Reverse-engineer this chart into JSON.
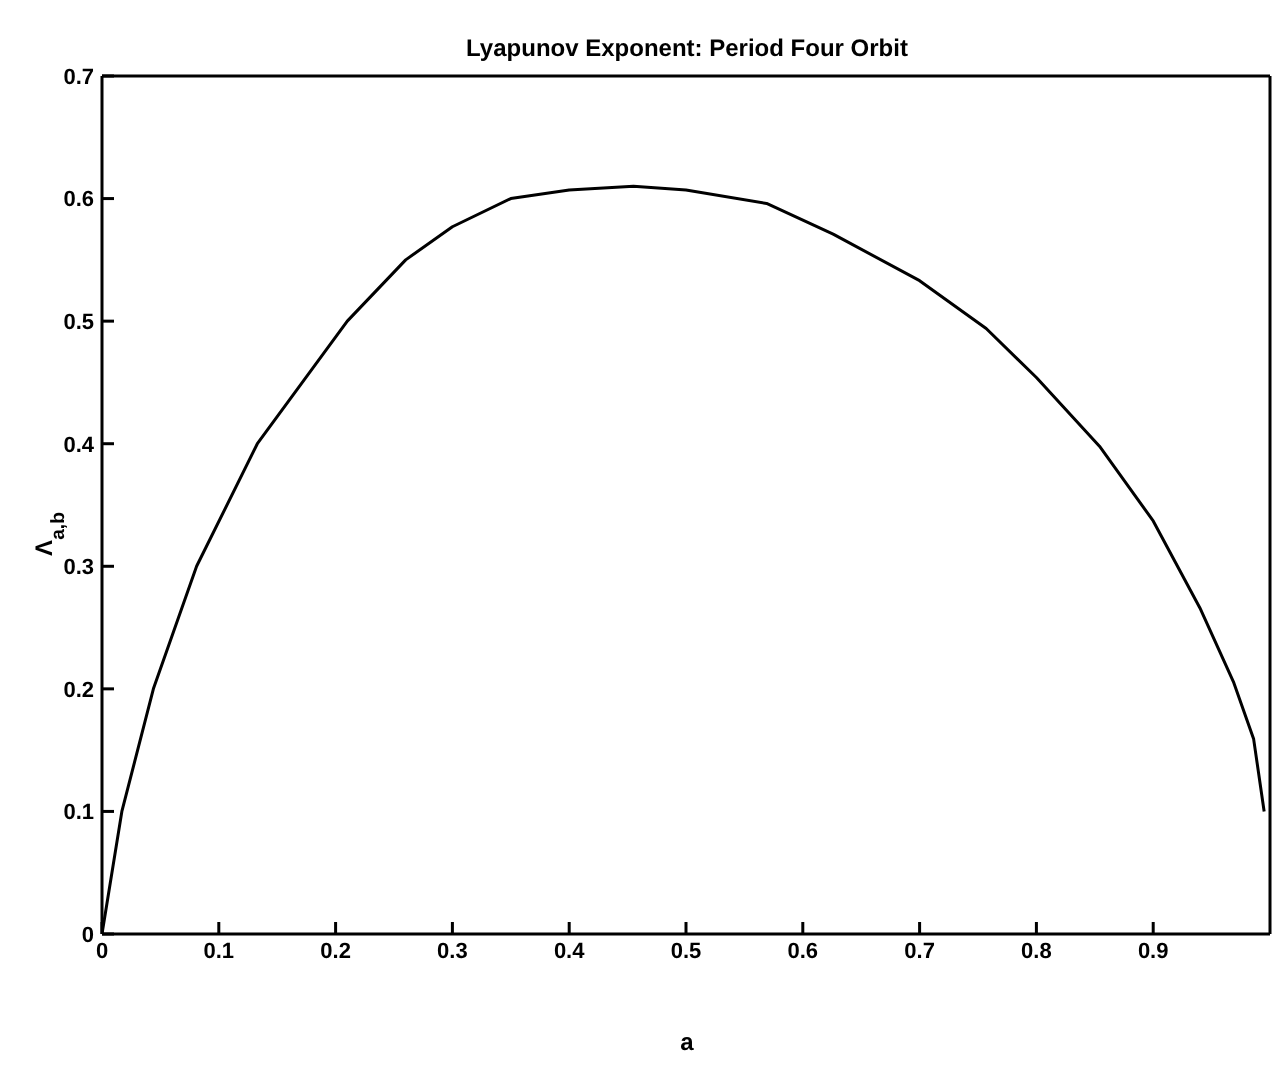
{
  "chart_data": {
    "type": "line",
    "title": "Lyapunov Exponent: Period Four Orbit",
    "xlabel": "a",
    "ylabel": "Λ$_{a,b}$",
    "x": [
      0,
      0.017,
      0.044,
      0.081,
      0.133,
      0.21,
      0.26,
      0.3,
      0.35,
      0.4,
      0.455,
      0.5,
      0.569,
      0.626,
      0.7,
      0.757,
      0.8,
      0.854,
      0.9,
      0.94,
      0.969,
      0.986,
      0.995
    ],
    "series": [
      {
        "color": "#000000",
        "values": [
          0,
          0.1,
          0.2,
          0.3,
          0.4,
          0.5,
          0.55,
          0.577,
          0.6,
          0.607,
          0.61,
          0.607,
          0.596,
          0.571,
          0.533,
          0.494,
          0.454,
          0.398,
          0.337,
          0.266,
          0.205,
          0.159,
          0.1
        ]
      }
    ],
    "xlim": [
      0,
      1
    ],
    "xticks": [
      0,
      0.1,
      0.2,
      0.3,
      0.4,
      0.5,
      0.6,
      0.7,
      0.8,
      0.9
    ],
    "ylim": [
      0,
      0.7
    ],
    "yticks": [
      0,
      0.1,
      0.2,
      0.3,
      0.4,
      0.5,
      0.6,
      0.7
    ],
    "grid": false,
    "legend": false,
    "marker": "none",
    "line_style": "solid"
  }
}
